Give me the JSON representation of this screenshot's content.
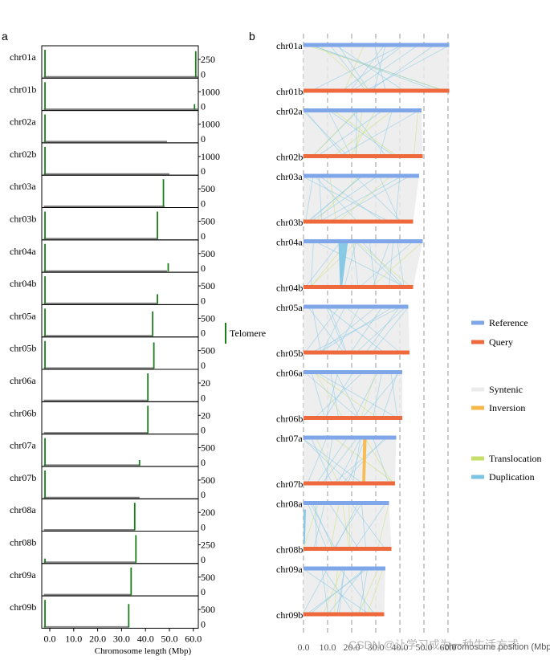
{
  "panel_a": {
    "label": "a",
    "xlabel": "Chromosome length (Mbp)",
    "x_ticks": [
      "0.0",
      "10.0",
      "20.0",
      "30.0",
      "40.0",
      "50.0",
      "60.0"
    ],
    "legend_label": "Telomere",
    "colors": {
      "telomere": "#1a7f1a",
      "length_bar": "#808080"
    }
  },
  "panel_b": {
    "label": "b",
    "xlabel": "chromosome position (Mbp)",
    "x_ticks": [
      "0.0",
      "10.0",
      "20.0",
      "30.0",
      "40.0",
      "50.0",
      "60.0"
    ],
    "legend": {
      "reference": "Reference",
      "query": "Query",
      "syntenic": "Syntenic",
      "inversion": "Inversion",
      "translocation": "Translocation",
      "duplication": "Duplication"
    },
    "colors": {
      "reference": "#7ea6e8",
      "query": "#ee6a3d",
      "syntenic": "#ebebeb",
      "inversion": "#f7b84a",
      "translocation": "#c6df6a",
      "duplication": "#7cc4e4"
    }
  },
  "watermark": "CSDN @让学习成为一种生活方式",
  "chart_data": [
    {
      "type": "bar",
      "title": "",
      "xlabel": "Chromosome length (Mbp)",
      "xlim": [
        -3,
        62
      ],
      "tracks": [
        {
          "name": "chr01a",
          "length": 62.0,
          "ymax_label": "250",
          "tel_pos": [
            -2.0,
            61.0
          ],
          "tel_height": [
            1.0,
            0.95
          ]
        },
        {
          "name": "chr01b",
          "length": 62.0,
          "ymax_label": "1000",
          "tel_pos": [
            -2.0,
            60.5
          ],
          "tel_height": [
            1.0,
            0.2
          ]
        },
        {
          "name": "chr02a",
          "length": 49.0,
          "ymax_label": "1000",
          "tel_pos": [
            -2.0
          ],
          "tel_height": [
            1.0
          ]
        },
        {
          "name": "chr02b",
          "length": 50.0,
          "ymax_label": "1000",
          "tel_pos": [
            -2.0
          ],
          "tel_height": [
            1.0
          ]
        },
        {
          "name": "chr03a",
          "length": 48.0,
          "ymax_label": "500",
          "tel_pos": [
            47.5
          ],
          "tel_height": [
            1.0
          ]
        },
        {
          "name": "chr03b",
          "length": 45.0,
          "ymax_label": "500",
          "tel_pos": [
            -2.0,
            45.0
          ],
          "tel_height": [
            1.0,
            1.0
          ]
        },
        {
          "name": "chr04a",
          "length": 49.0,
          "ymax_label": "500",
          "tel_pos": [
            -2.0,
            49.5
          ],
          "tel_height": [
            1.0,
            0.3
          ]
        },
        {
          "name": "chr04b",
          "length": 45.0,
          "ymax_label": "500",
          "tel_pos": [
            -2.0,
            45.0
          ],
          "tel_height": [
            1.0,
            0.35
          ]
        },
        {
          "name": "chr05a",
          "length": 43.0,
          "ymax_label": "500",
          "tel_pos": [
            -2.0,
            43.0
          ],
          "tel_height": [
            1.0,
            0.9
          ]
        },
        {
          "name": "chr05b",
          "length": 43.5,
          "ymax_label": "500",
          "tel_pos": [
            -2.0,
            43.5
          ],
          "tel_height": [
            1.0,
            0.95
          ]
        },
        {
          "name": "chr06a",
          "length": 41.0,
          "ymax_label": "20",
          "tel_pos": [
            41.0
          ],
          "tel_height": [
            1.0
          ]
        },
        {
          "name": "chr06b",
          "length": 41.0,
          "ymax_label": "20",
          "tel_pos": [
            41.0
          ],
          "tel_height": [
            1.0
          ]
        },
        {
          "name": "chr07a",
          "length": 37.5,
          "ymax_label": "500",
          "tel_pos": [
            -2.0,
            37.5
          ],
          "tel_height": [
            1.0,
            0.2
          ]
        },
        {
          "name": "chr07b",
          "length": 37.5,
          "ymax_label": "500",
          "tel_pos": [
            -2.0
          ],
          "tel_height": [
            1.0
          ]
        },
        {
          "name": "chr08a",
          "length": 35.5,
          "ymax_label": "200",
          "tel_pos": [
            35.5
          ],
          "tel_height": [
            1.0
          ]
        },
        {
          "name": "chr08b",
          "length": 36.0,
          "ymax_label": "250",
          "tel_pos": [
            -2.0,
            36.0
          ],
          "tel_height": [
            0.15,
            1.0
          ]
        },
        {
          "name": "chr09a",
          "length": 34.0,
          "ymax_label": "500",
          "tel_pos": [
            34.0
          ],
          "tel_height": [
            1.0
          ]
        },
        {
          "name": "chr09b",
          "length": 33.0,
          "ymax_label": "500",
          "tel_pos": [
            -2.0,
            33.0
          ],
          "tel_height": [
            1.0,
            0.85
          ]
        }
      ]
    },
    {
      "type": "synteny",
      "title": "",
      "xlabel": "chromosome position (Mbp)",
      "xlim": [
        0,
        65
      ],
      "pairs": [
        {
          "ref": "chr01a",
          "query": "chr01b",
          "ref_len": 60.5,
          "query_len": 60.5
        },
        {
          "ref": "chr02a",
          "query": "chr02b",
          "ref_len": 49.0,
          "query_len": 49.5
        },
        {
          "ref": "chr03a",
          "query": "chr03b",
          "ref_len": 48.0,
          "query_len": 45.5
        },
        {
          "ref": "chr04a",
          "query": "chr04b",
          "ref_len": 49.5,
          "query_len": 45.5
        },
        {
          "ref": "chr05a",
          "query": "chr05b",
          "ref_len": 43.5,
          "query_len": 44.0
        },
        {
          "ref": "chr06a",
          "query": "chr06b",
          "ref_len": 41.0,
          "query_len": 41.0
        },
        {
          "ref": "chr07a",
          "query": "chr07b",
          "ref_len": 38.5,
          "query_len": 38.0
        },
        {
          "ref": "chr08a",
          "query": "chr08b",
          "ref_len": 35.5,
          "query_len": 36.5
        },
        {
          "ref": "chr09a",
          "query": "chr09b",
          "ref_len": 34.0,
          "query_len": 33.5
        }
      ],
      "legend": [
        "Reference",
        "Query",
        "Syntenic",
        "Inversion",
        "Translocation",
        "Duplication"
      ]
    }
  ]
}
